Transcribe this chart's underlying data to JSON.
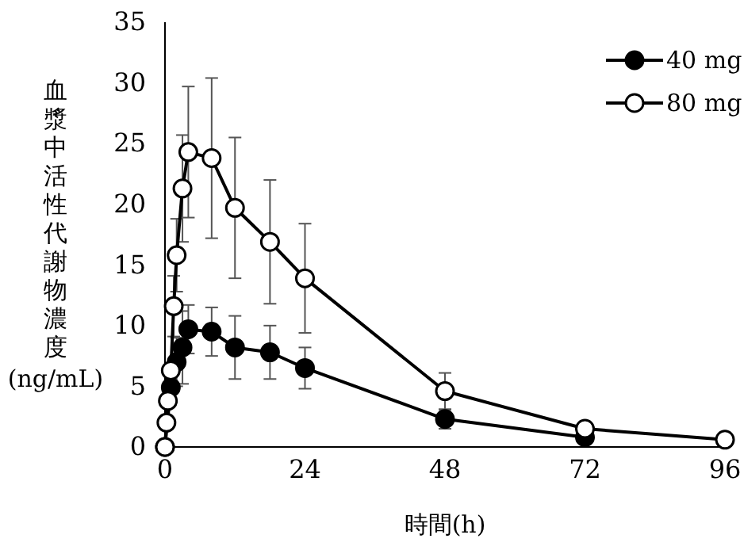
{
  "chart_data": {
    "type": "line",
    "xlabel": "時間(h)",
    "ylabel": "血漿中活性代謝物濃度(ng/mL)",
    "x": [
      0,
      0.25,
      0.5,
      1,
      1.5,
      2,
      3,
      4,
      8,
      12,
      18,
      24,
      48,
      72,
      96
    ],
    "series": [
      {
        "name": "40 mg",
        "color": "#000000",
        "values": [
          0,
          null,
          null,
          4.9,
          null,
          7.0,
          8.2,
          9.7,
          9.5,
          8.2,
          7.8,
          6.5,
          2.3,
          0.8,
          null
        ],
        "errors": [
          null,
          null,
          null,
          null,
          null,
          2,
          3,
          2,
          2,
          2.6,
          2.2,
          1.7,
          0.8,
          null,
          null
        ]
      },
      {
        "name": "80 mg",
        "color": "#ffffff",
        "values": [
          0,
          2.0,
          3.8,
          6.3,
          11.6,
          15.8,
          21.3,
          24.3,
          23.8,
          19.7,
          16.9,
          13.9,
          4.6,
          1.5,
          0.6
        ],
        "errors": [
          null,
          null,
          null,
          null,
          2.5,
          3,
          4.4,
          5.4,
          6.6,
          5.8,
          5.1,
          4.5,
          1.5,
          0.5,
          null
        ]
      }
    ],
    "xlim": [
      0,
      96
    ],
    "xticks": [
      0,
      24,
      48,
      72,
      96
    ],
    "ylim": [
      0,
      35
    ],
    "yticks": [
      0,
      5,
      10,
      15,
      20,
      25,
      30,
      35
    ],
    "marker": "circle",
    "legend": "top right",
    "grid": false
  }
}
